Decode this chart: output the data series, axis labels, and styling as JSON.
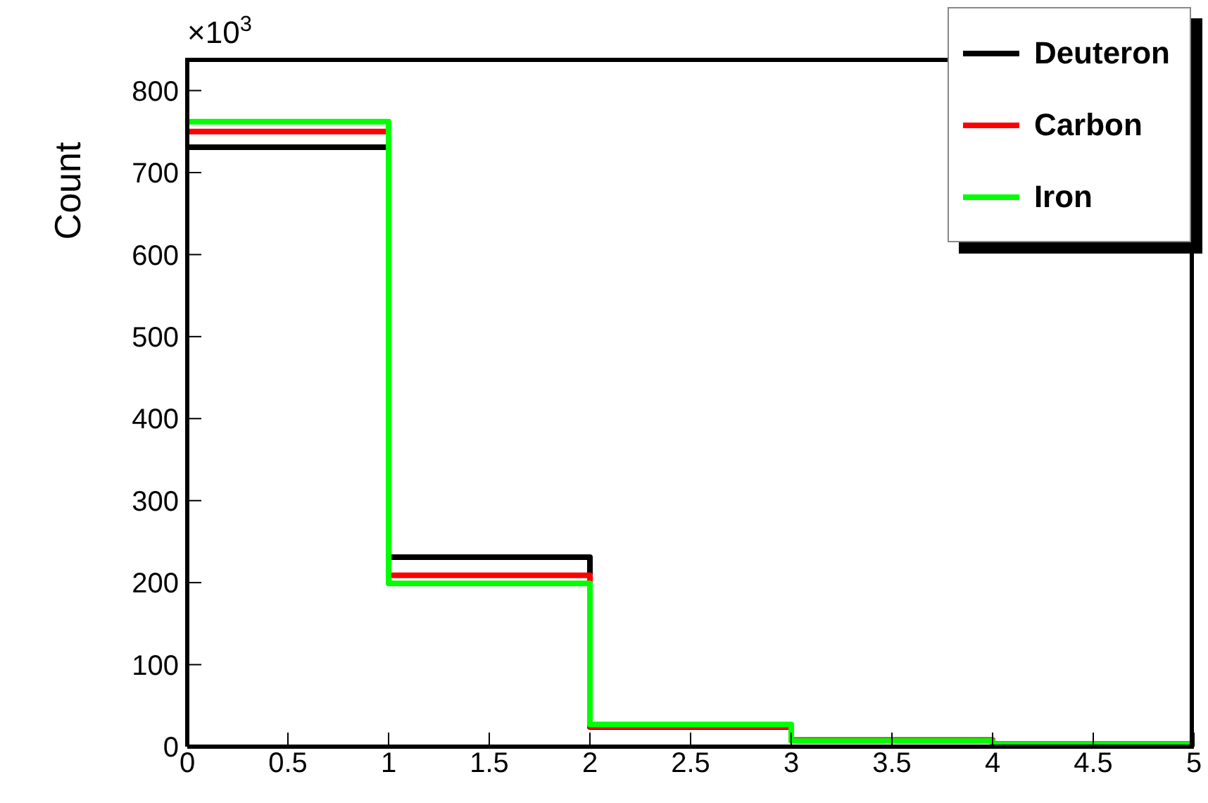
{
  "chart_data": {
    "type": "histogram",
    "ylabel": "Count",
    "annotations": [
      "×10$^{3}$"
    ],
    "bins": [
      0,
      1,
      2,
      3,
      4,
      5
    ],
    "series": [
      {
        "name": "Deuteron",
        "color": "#000000",
        "values": [
          731,
          231,
          24,
          8,
          3
        ]
      },
      {
        "name": "Carbon",
        "color": "#ff0000",
        "values": [
          750,
          209,
          25,
          8,
          3
        ]
      },
      {
        "name": "Iron",
        "color": "#00ff00",
        "values": [
          762,
          199,
          27,
          7,
          3
        ]
      }
    ],
    "xlim": [
      0,
      5
    ],
    "xticks": [
      0,
      0.5,
      1,
      1.5,
      2,
      2.5,
      3,
      3.5,
      4,
      4.5,
      5
    ],
    "ylim": [
      0,
      840
    ],
    "yticks": [
      0,
      100,
      200,
      300,
      400,
      500,
      600,
      700,
      800
    ],
    "legend": "top right",
    "grid": false
  }
}
